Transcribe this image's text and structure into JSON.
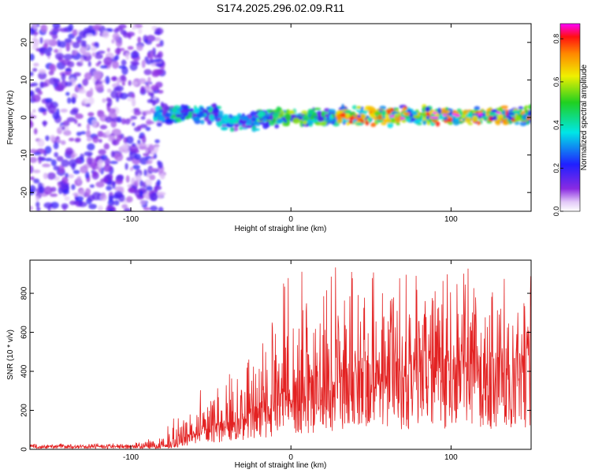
{
  "title": "S174.2025.296.02.09.R11",
  "colors": {
    "snr_line": "#e32222",
    "axis": "#000000"
  },
  "chart_data": [
    {
      "type": "heatmap",
      "title": "S174.2025.296.02.09.R11",
      "xlabel": "Height of straight line (km)",
      "ylabel": "Frequency (Hz)",
      "xlim": [
        -163,
        150
      ],
      "ylim": [
        -25,
        25
      ],
      "xticks": [
        -100,
        0,
        100
      ],
      "yticks": [
        -20,
        -10,
        0,
        10,
        20
      ],
      "colorbar": {
        "label": "Normalized spectral amplitude",
        "range": [
          0,
          0.87
        ],
        "ticks": [
          0.0,
          0.2,
          0.4,
          0.6,
          0.8
        ],
        "colormap": "rainbow (white -> violet -> blue -> cyan -> green -> yellow -> orange -> red -> magenta)"
      },
      "features": [
        {
          "x_range": [
            -163,
            -80
          ],
          "freq_range": [
            -25,
            25
          ],
          "amplitude": 0.12,
          "description": "broadband scattered noise"
        },
        {
          "x_range": [
            -85,
            -45
          ],
          "center_freq_hz": 1,
          "amplitude": 0.32
        },
        {
          "x_range": [
            -45,
            -20
          ],
          "center_freq_hz": -1,
          "amplitude": 0.28
        },
        {
          "x_range": [
            -20,
            30
          ],
          "center_freq_hz": 0,
          "amplitude": 0.4
        },
        {
          "x_range": [
            30,
            150
          ],
          "center_freq_hz": 0.5,
          "amplitude": 0.55,
          "peak_amplitude": 0.87
        }
      ]
    },
    {
      "type": "line",
      "xlabel": "Height of straight line (km)",
      "ylabel": "SNR (10 * v/v)",
      "xlim": [
        -163,
        150
      ],
      "ylim": [
        0,
        970
      ],
      "xticks": [
        -100,
        0,
        100
      ],
      "yticks": [
        0,
        200,
        400,
        600,
        800
      ],
      "series": [
        {
          "name": "SNR",
          "x": [
            -163,
            -140,
            -120,
            -100,
            -85,
            -75,
            -70,
            -65,
            -60,
            -55,
            -50,
            -45,
            -40,
            -35,
            -30,
            -25,
            -20,
            -15,
            -10,
            -5,
            0,
            5,
            10,
            15,
            20,
            25,
            30,
            35,
            40,
            45,
            50,
            55,
            60,
            65,
            70,
            75,
            80,
            85,
            90,
            95,
            100,
            105,
            110,
            115,
            120,
            125,
            130,
            135,
            140,
            145,
            150
          ],
          "values": [
            15,
            15,
            15,
            15,
            15,
            25,
            40,
            60,
            80,
            100,
            120,
            110,
            120,
            130,
            150,
            170,
            200,
            220,
            250,
            270,
            290,
            300,
            320,
            340,
            360,
            370,
            380,
            390,
            380,
            400,
            400,
            410,
            400,
            420,
            400,
            410,
            420,
            400,
            420,
            430,
            410,
            420,
            400,
            420,
            420,
            400,
            410,
            420,
            430,
            430,
            450
          ],
          "envelope_max": [
            30,
            30,
            30,
            30,
            60,
            150,
            200,
            260,
            300,
            320,
            300,
            330,
            380,
            400,
            430,
            500,
            620,
            700,
            800,
            900,
            950,
            930,
            950,
            900,
            900,
            920,
            970,
            930,
            900,
            920,
            950,
            900,
            930,
            920,
            900,
            910,
            920,
            900,
            920,
            900,
            900,
            920,
            950,
            920,
            900,
            900,
            890,
            880,
            900,
            880,
            900
          ]
        }
      ]
    }
  ]
}
